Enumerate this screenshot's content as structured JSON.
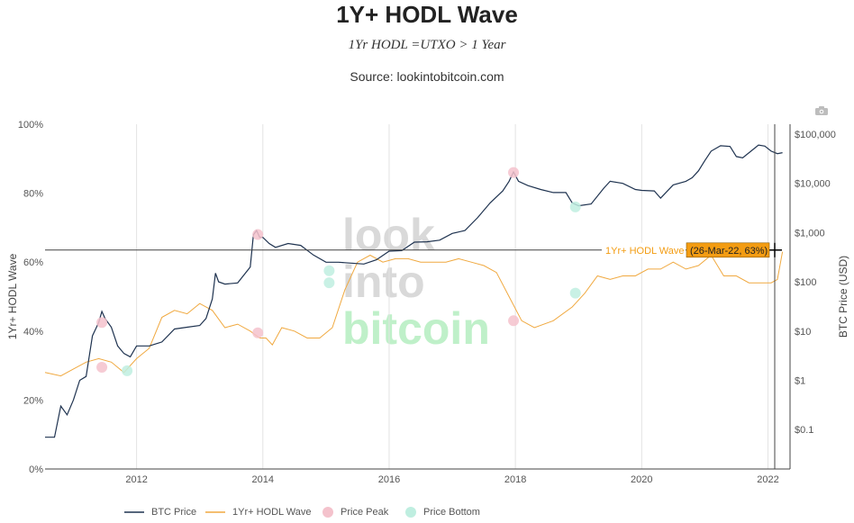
{
  "title": "1Y+ HODL Wave",
  "formula": "1Yr HODL =UTXO > 1 Year",
  "source": "Source: lookintobitcoin.com",
  "watermark": [
    "look",
    "into",
    "bitcoin"
  ],
  "icons": {
    "camera": "camera-icon"
  },
  "hover": {
    "label": "1Yr+ HODL Wave",
    "tooltip": "(26-Mar-22, 63%)",
    "y_value": 63.5
  },
  "colors": {
    "price": "#1f3350",
    "hodl": "#f0a940",
    "peak": "#f4c2cc",
    "bottom": "#bfeee0",
    "tooltip_bg": "#f39c12",
    "watermark_gray": "#d9d9d9",
    "watermark_green": "#bff0c9"
  },
  "chart_data": {
    "type": "line",
    "title": "1Y+ HODL Wave",
    "x_ticks": [
      "2012",
      "2014",
      "2016",
      "2018",
      "2020",
      "2022"
    ],
    "y_left_ticks": [
      "0%",
      "20%",
      "40%",
      "60%",
      "80%",
      "100%"
    ],
    "y_right_ticks": [
      "$0.1",
      "$1",
      "$10",
      "$100",
      "$1,000",
      "$10,000",
      "$100,000"
    ],
    "y_left_label": "1Yr+ HODL Wave",
    "y_right_label": "BTC Price (USD)",
    "x_range": [
      2010.55,
      2022.35
    ],
    "y_left_range": [
      0,
      100
    ],
    "y_right_range": [
      -1.8,
      5.2
    ],
    "y_right_scale": "log",
    "grid": "vertical",
    "legend_position": "bottom",
    "series": [
      {
        "name": "BTC Price",
        "axis": "right",
        "unit": "USD",
        "x": [
          2010.55,
          2010.7,
          2010.8,
          2010.9,
          2011.0,
          2011.1,
          2011.2,
          2011.3,
          2011.4,
          2011.45,
          2011.5,
          2011.6,
          2011.7,
          2011.8,
          2011.9,
          2012.0,
          2012.2,
          2012.4,
          2012.6,
          2012.8,
          2013.0,
          2013.1,
          2013.2,
          2013.25,
          2013.3,
          2013.4,
          2013.6,
          2013.8,
          2013.85,
          2013.9,
          2013.95,
          2014.0,
          2014.1,
          2014.2,
          2014.4,
          2014.6,
          2014.8,
          2015.0,
          2015.2,
          2015.4,
          2015.6,
          2015.8,
          2016.0,
          2016.2,
          2016.4,
          2016.6,
          2016.8,
          2017.0,
          2017.2,
          2017.4,
          2017.6,
          2017.8,
          2017.9,
          2017.97,
          2018.05,
          2018.2,
          2018.4,
          2018.6,
          2018.8,
          2018.9,
          2019.0,
          2019.2,
          2019.4,
          2019.5,
          2019.7,
          2019.9,
          2020.0,
          2020.2,
          2020.3,
          2020.5,
          2020.7,
          2020.8,
          2020.9,
          2021.0,
          2021.1,
          2021.25,
          2021.4,
          2021.5,
          2021.6,
          2021.75,
          2021.85,
          2021.95,
          2022.05,
          2022.15,
          2022.23
        ],
        "values": [
          0.07,
          0.07,
          0.3,
          0.2,
          0.4,
          1.0,
          1.2,
          8,
          15,
          25,
          18,
          12,
          5,
          3.5,
          3,
          5,
          5,
          6,
          11,
          12,
          13,
          18,
          45,
          150,
          100,
          90,
          95,
          200,
          900,
          1100,
          800,
          800,
          600,
          500,
          600,
          550,
          350,
          250,
          250,
          240,
          230,
          280,
          420,
          430,
          640,
          650,
          700,
          960,
          1100,
          2000,
          4000,
          7000,
          11000,
          17000,
          11000,
          9000,
          7500,
          6500,
          6500,
          4000,
          3500,
          3800,
          8000,
          11000,
          10000,
          7500,
          7200,
          7000,
          5000,
          9300,
          11000,
          13000,
          18000,
          29000,
          45000,
          58000,
          56000,
          35000,
          33000,
          47000,
          60000,
          57000,
          45000,
          40000,
          42000
        ]
      },
      {
        "name": "1Yr+ HODL Wave",
        "axis": "left",
        "unit": "%",
        "x": [
          2010.55,
          2010.8,
          2011.0,
          2011.2,
          2011.4,
          2011.6,
          2011.8,
          2012.0,
          2012.2,
          2012.4,
          2012.6,
          2012.8,
          2013.0,
          2013.2,
          2013.4,
          2013.6,
          2013.8,
          2013.95,
          2014.05,
          2014.15,
          2014.3,
          2014.5,
          2014.7,
          2014.9,
          2015.1,
          2015.3,
          2015.5,
          2015.7,
          2015.9,
          2016.1,
          2016.3,
          2016.5,
          2016.7,
          2016.9,
          2017.1,
          2017.3,
          2017.5,
          2017.7,
          2017.9,
          2018.1,
          2018.3,
          2018.6,
          2018.9,
          2019.1,
          2019.3,
          2019.5,
          2019.7,
          2019.9,
          2020.1,
          2020.3,
          2020.5,
          2020.7,
          2020.9,
          2021.1,
          2021.3,
          2021.5,
          2021.7,
          2021.9,
          2022.05,
          2022.15,
          2022.23
        ],
        "values": [
          28,
          27,
          29,
          31,
          32,
          31,
          28,
          32,
          35,
          44,
          46,
          45,
          48,
          46,
          41,
          42,
          40,
          38,
          38,
          36,
          41,
          40,
          38,
          38,
          41,
          52,
          60,
          62,
          60,
          61,
          61,
          60,
          60,
          60,
          61,
          60,
          59,
          57,
          50,
          43,
          41,
          43,
          47,
          51,
          56,
          55,
          56,
          56,
          58,
          58,
          60,
          58,
          59,
          62,
          56,
          56,
          54,
          54,
          54,
          55,
          63
        ]
      },
      {
        "name": "Price Peak",
        "axis": "left",
        "points": [
          [
            2011.45,
            42.5
          ],
          [
            2011.45,
            29.5
          ],
          [
            2013.92,
            68.0
          ],
          [
            2013.92,
            39.5
          ],
          [
            2017.97,
            86.0
          ],
          [
            2017.97,
            43.0
          ]
        ]
      },
      {
        "name": "Price Bottom",
        "axis": "left",
        "points": [
          [
            2011.85,
            28.5
          ],
          [
            2015.05,
            57.5
          ],
          [
            2015.05,
            54.0
          ],
          [
            2018.95,
            76.0
          ],
          [
            2018.95,
            51.0
          ]
        ]
      }
    ]
  },
  "legend": [
    {
      "name": "BTC Price",
      "kind": "line",
      "color_key": "price"
    },
    {
      "name": "1Yr+ HODL Wave",
      "kind": "line",
      "color_key": "hodl"
    },
    {
      "name": "Price Peak",
      "kind": "dot",
      "color_key": "peak"
    },
    {
      "name": "Price Bottom",
      "kind": "dot",
      "color_key": "bottom"
    }
  ]
}
